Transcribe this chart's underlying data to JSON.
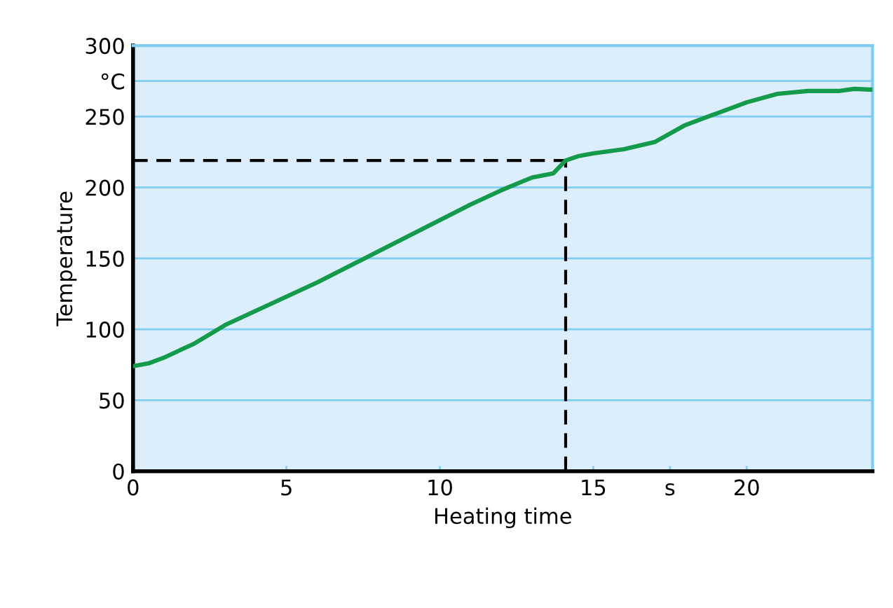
{
  "chart_data": {
    "type": "line",
    "xlabel": "Heating time",
    "ylabel": "Temperature",
    "x": [
      0,
      0.5,
      1,
      2,
      3,
      4,
      5,
      6,
      7,
      8,
      9,
      10,
      11,
      12,
      13,
      13.7,
      14.1,
      14.5,
      15,
      16,
      17,
      18,
      19,
      20,
      21,
      22,
      23,
      23.5,
      24,
      24.1
    ],
    "series": [
      {
        "color": "#139a4a",
        "values": [
          74,
          76,
          80,
          90,
          103,
          113,
          123,
          133,
          144,
          155,
          166,
          177,
          188,
          198,
          207,
          210,
          219,
          222,
          224,
          227,
          232,
          244,
          252,
          260,
          266,
          268,
          268,
          269.5,
          269,
          269
        ]
      }
    ],
    "xlim": [
      0,
      24.1
    ],
    "ylim": [
      0,
      300
    ],
    "xticks": [
      0,
      5,
      10,
      15,
      {
        "value": 17.5,
        "label": "s"
      },
      20
    ],
    "yticks": [
      0,
      50,
      100,
      150,
      200,
      250,
      {
        "value": 275,
        "label": "°C"
      },
      300
    ],
    "grid": "y",
    "marker": "none",
    "line_style": "solid",
    "ref_lines": [
      {
        "axis": "y",
        "value": 219,
        "line_style": "dashed",
        "color": "#000000"
      },
      {
        "axis": "x",
        "value": 14.1,
        "line_style": "dashed",
        "color": "#000000"
      }
    ]
  }
}
